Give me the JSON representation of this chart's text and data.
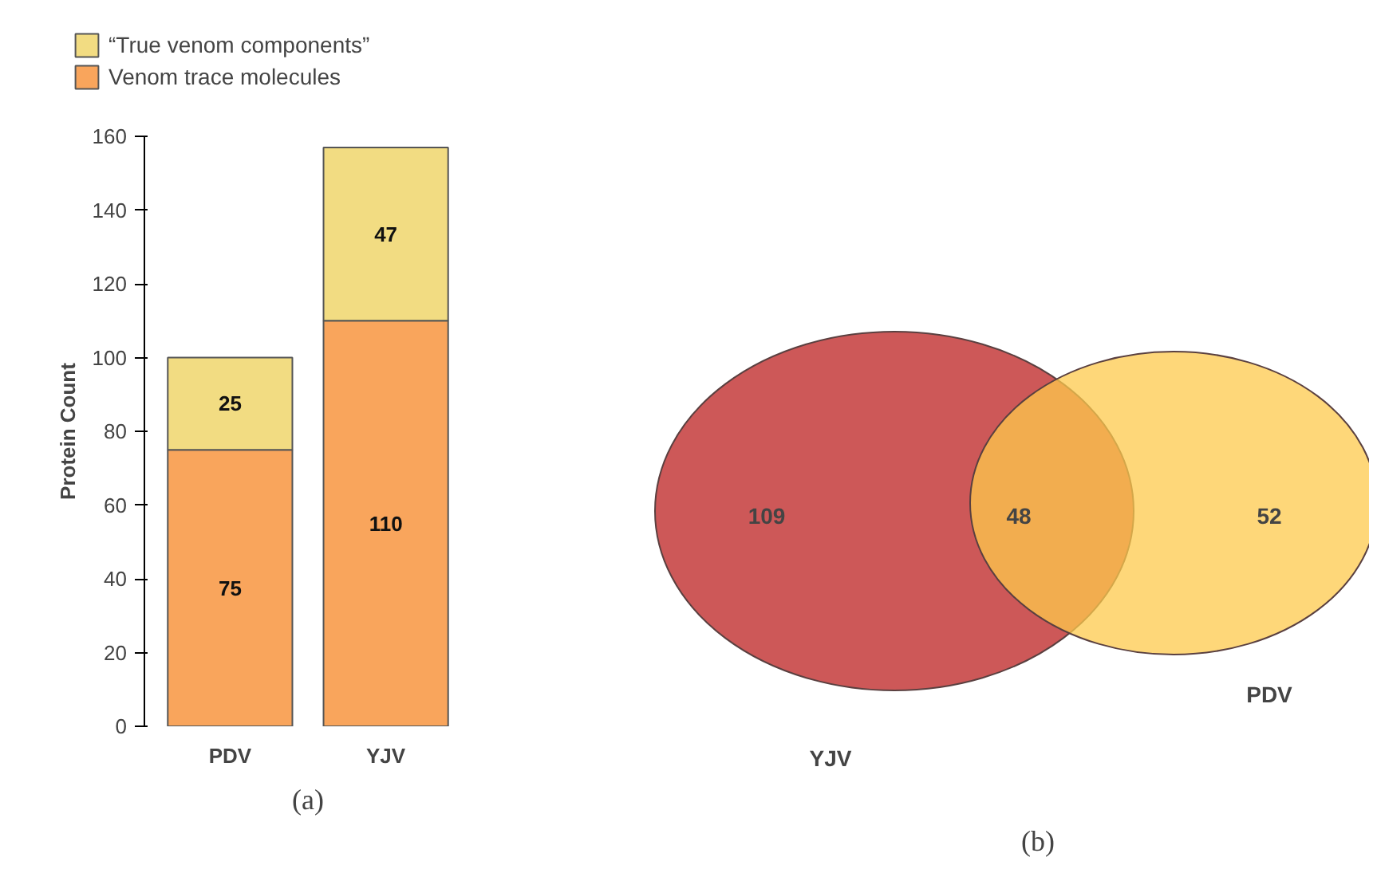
{
  "chart_data": [
    {
      "type": "bar",
      "stacked": true,
      "categories": [
        "PDV",
        "YJV"
      ],
      "ylabel": "Protein Count",
      "series": [
        {
          "name": "Venom trace molecules",
          "color": "#f9a55c",
          "values": [
            75,
            110
          ]
        },
        {
          "name": "“True venom components”",
          "color": "#f2dc82",
          "values": [
            25,
            47
          ]
        }
      ],
      "ylim": [
        0,
        160
      ],
      "yticks": [
        0,
        20,
        40,
        60,
        80,
        100,
        120,
        140,
        160
      ],
      "grid": false,
      "legend": "top left",
      "data_labels": true,
      "annotations": [
        "(a)"
      ]
    },
    {
      "type": "other",
      "categories": [
        "YJV",
        null,
        "PDV"
      ],
      "values": [
        109,
        48,
        52
      ],
      "colors": [
        "#cd5858",
        null,
        "#fdca4c"
      ],
      "data_labels": true,
      "annotations": [
        "(b)"
      ]
    }
  ]
}
